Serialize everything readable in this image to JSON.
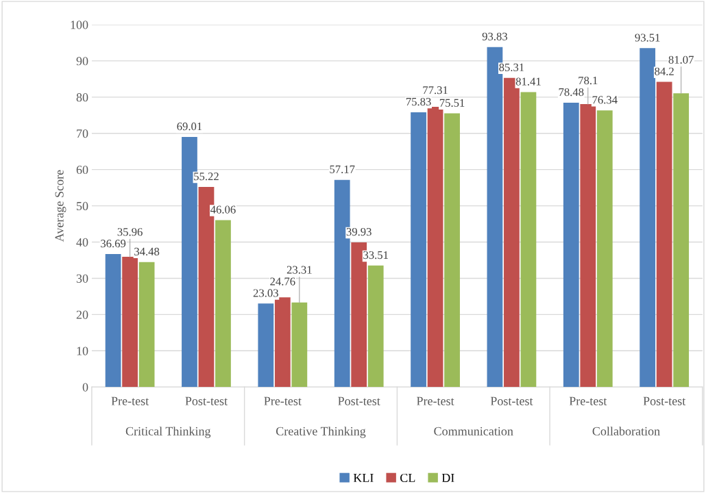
{
  "chart_data": {
    "type": "bar",
    "ylabel": "Average Score",
    "categories": [
      "Pre-test",
      "Post-test",
      "Pre-test",
      "Post-test",
      "Pre-test",
      "Post-test",
      "Pre-test",
      "Post-test"
    ],
    "annotations": [
      "Critical Thinking",
      "Creative Thinking",
      "Communication",
      "Collaboration"
    ],
    "series": [
      {
        "name": "KLI",
        "color": "#4f81bd",
        "values": [
          36.69,
          69.01,
          23.03,
          57.17,
          75.83,
          93.83,
          78.48,
          93.51
        ]
      },
      {
        "name": "CL",
        "color": "#c0504d",
        "values": [
          35.96,
          55.22,
          24.76,
          39.93,
          77.31,
          85.31,
          78.1,
          84.2
        ]
      },
      {
        "name": "DI",
        "color": "#9bbb59",
        "values": [
          34.48,
          46.06,
          23.31,
          33.51,
          75.51,
          81.41,
          76.34,
          81.07
        ]
      }
    ],
    "ylim": [
      0,
      100
    ],
    "yticks": [
      0,
      10,
      20,
      30,
      40,
      50,
      60,
      70,
      80,
      90,
      100
    ],
    "grid": "y",
    "legend": "bottom",
    "data_labels": true
  }
}
